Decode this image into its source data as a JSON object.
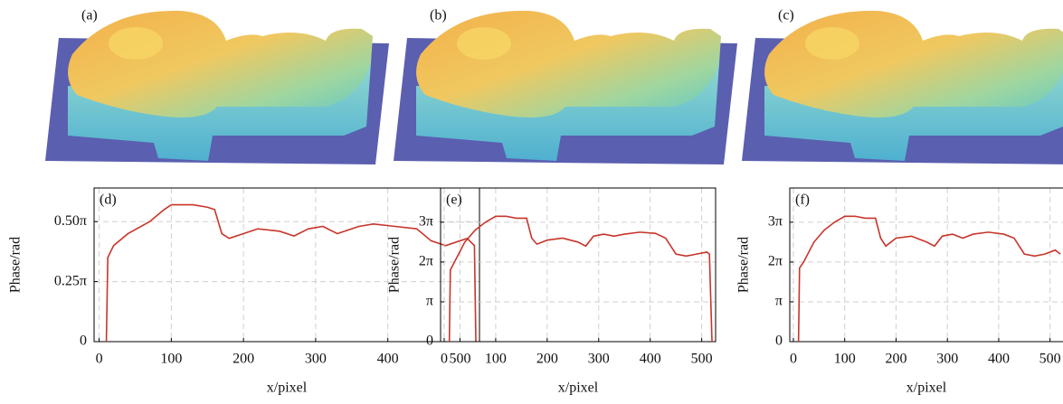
{
  "panels": [
    {
      "label": "(a)"
    },
    {
      "label": "(b)"
    },
    {
      "label": "(c)"
    }
  ],
  "chart_data": [
    {
      "type": "line",
      "annotation": "(d)",
      "xlabel": "x/pixel",
      "ylabel": "Phase/rad",
      "xlim": [
        -7,
        527
      ],
      "xticks": [
        0,
        100,
        200,
        300,
        400,
        500
      ],
      "ylim": [
        0,
        0.64
      ],
      "yticks": [
        0,
        {
          "value": 0.25,
          "label": "0.25π"
        },
        {
          "value": 0.5,
          "label": "0.50π"
        }
      ],
      "grid": true,
      "x": [
        10,
        12,
        20,
        40,
        70,
        90,
        100,
        130,
        150,
        160,
        170,
        180,
        200,
        220,
        250,
        270,
        290,
        310,
        330,
        360,
        380,
        410,
        440,
        460,
        480,
        500,
        510,
        520,
        522
      ],
      "series": [
        {
          "color": "#c8352b",
          "values": [
            0,
            0.35,
            0.4,
            0.45,
            0.5,
            0.55,
            0.57,
            0.57,
            0.56,
            0.55,
            0.45,
            0.43,
            0.45,
            0.47,
            0.46,
            0.44,
            0.47,
            0.48,
            0.45,
            0.48,
            0.49,
            0.48,
            0.47,
            0.42,
            0.4,
            0.42,
            0.43,
            0.4,
            0
          ]
        }
      ]
    },
    {
      "type": "line",
      "annotation": "(e)",
      "xlabel": "x/pixel",
      "ylabel": "Phase/rad",
      "xlim": [
        -7,
        527
      ],
      "xticks": [
        0,
        100,
        200,
        300,
        400,
        500
      ],
      "ylim": [
        0,
        3.86
      ],
      "yticks": [
        0,
        {
          "value": 1,
          "label": "π"
        },
        {
          "value": 2,
          "label": "2π"
        },
        {
          "value": 3,
          "label": "3π"
        }
      ],
      "grid": true,
      "x": [
        10,
        12,
        20,
        40,
        60,
        80,
        100,
        120,
        140,
        160,
        170,
        180,
        200,
        230,
        260,
        275,
        290,
        310,
        330,
        350,
        380,
        410,
        430,
        450,
        470,
        490,
        510,
        515,
        520
      ],
      "series": [
        {
          "color": "#c8352b",
          "values": [
            0,
            1.8,
            2.0,
            2.5,
            2.8,
            3.0,
            3.15,
            3.15,
            3.1,
            3.1,
            2.6,
            2.45,
            2.55,
            2.6,
            2.5,
            2.4,
            2.65,
            2.7,
            2.65,
            2.7,
            2.75,
            2.72,
            2.6,
            2.2,
            2.15,
            2.2,
            2.25,
            2.2,
            0
          ]
        }
      ]
    },
    {
      "type": "line",
      "annotation": "(f)",
      "xlabel": "x/pixel",
      "ylabel": "Phase/rad",
      "xlim": [
        -7,
        527
      ],
      "xticks": [
        0,
        100,
        200,
        300,
        400,
        500
      ],
      "ylim": [
        0,
        3.86
      ],
      "yticks": [
        0,
        {
          "value": 1,
          "label": "π"
        },
        {
          "value": 2,
          "label": "2π"
        },
        {
          "value": 3,
          "label": "3π"
        }
      ],
      "grid": true,
      "x": [
        10,
        12,
        20,
        40,
        60,
        80,
        100,
        120,
        140,
        160,
        170,
        180,
        200,
        230,
        260,
        275,
        290,
        310,
        330,
        350,
        380,
        410,
        430,
        450,
        470,
        490,
        510,
        515,
        520
      ],
      "series": [
        {
          "color": "#c8352b",
          "values": [
            0,
            1.85,
            2.0,
            2.5,
            2.8,
            3.0,
            3.15,
            3.15,
            3.1,
            3.1,
            2.6,
            2.4,
            2.6,
            2.65,
            2.5,
            2.4,
            2.65,
            2.7,
            2.6,
            2.7,
            2.75,
            2.7,
            2.6,
            2.2,
            2.15,
            2.2,
            2.3,
            2.25,
            2.2
          ]
        }
      ]
    }
  ]
}
